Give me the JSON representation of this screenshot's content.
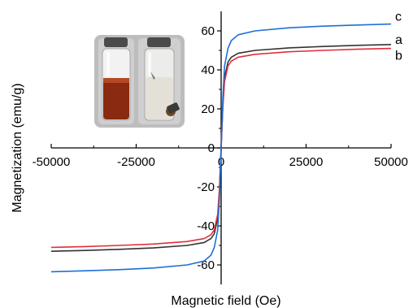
{
  "chart_data": {
    "type": "line",
    "xlabel": "Magnetic field (Oe)",
    "ylabel": "Magnetization (emu/g)",
    "xlim": [
      -50000,
      50000
    ],
    "ylim": [
      -70,
      70
    ],
    "x_ticks": [
      -50000,
      -25000,
      0,
      25000,
      50000
    ],
    "x_tick_labels": [
      "-50000",
      "-25000",
      "0",
      "25000",
      "50000"
    ],
    "y_ticks": [
      -60,
      -40,
      -20,
      0,
      20,
      40,
      60
    ],
    "y_tick_labels": [
      "-60",
      "-40",
      "-20",
      "0",
      "20",
      "40",
      "60"
    ],
    "grid": false,
    "series": [
      {
        "name": "a",
        "color": "#333333",
        "x": [
          -50000,
          -40000,
          -30000,
          -20000,
          -10000,
          -5000,
          -3000,
          -2000,
          -1000,
          -500,
          0,
          500,
          1000,
          2000,
          3000,
          5000,
          10000,
          20000,
          30000,
          40000,
          50000
        ],
        "y": [
          -53,
          -52.6,
          -52,
          -51.3,
          -50,
          -48.5,
          -46.5,
          -44,
          -36,
          -22,
          0,
          22,
          36,
          44,
          46.5,
          48.5,
          50,
          51.3,
          52,
          52.6,
          53
        ]
      },
      {
        "name": "b",
        "color": "#e0303a",
        "x": [
          -50000,
          -40000,
          -30000,
          -20000,
          -10000,
          -5000,
          -3000,
          -2000,
          -1000,
          -500,
          0,
          500,
          1000,
          2000,
          3000,
          5000,
          10000,
          20000,
          30000,
          40000,
          50000
        ],
        "y": [
          -51,
          -50.6,
          -50,
          -49.3,
          -48,
          -46.5,
          -44.5,
          -42,
          -34,
          -21,
          0,
          21,
          34,
          42,
          44.5,
          46.5,
          48,
          49.3,
          50,
          50.6,
          51
        ]
      },
      {
        "name": "c",
        "color": "#1f6fd6",
        "x": [
          -50000,
          -40000,
          -30000,
          -20000,
          -10000,
          -5000,
          -3000,
          -2000,
          -1000,
          -500,
          0,
          500,
          1000,
          2000,
          3000,
          5000,
          10000,
          20000,
          30000,
          40000,
          50000
        ],
        "y": [
          -63.5,
          -63,
          -62.4,
          -61.6,
          -60,
          -58,
          -55,
          -51,
          -42,
          -26,
          0,
          26,
          42,
          51,
          55,
          58,
          60,
          61.6,
          62.4,
          63,
          63.5
        ]
      }
    ],
    "inset_photo": {
      "vial_colors": {
        "liquid_dark": "#8a2a10",
        "glass": "#d8d8d8",
        "cap": "#555555"
      }
    }
  }
}
